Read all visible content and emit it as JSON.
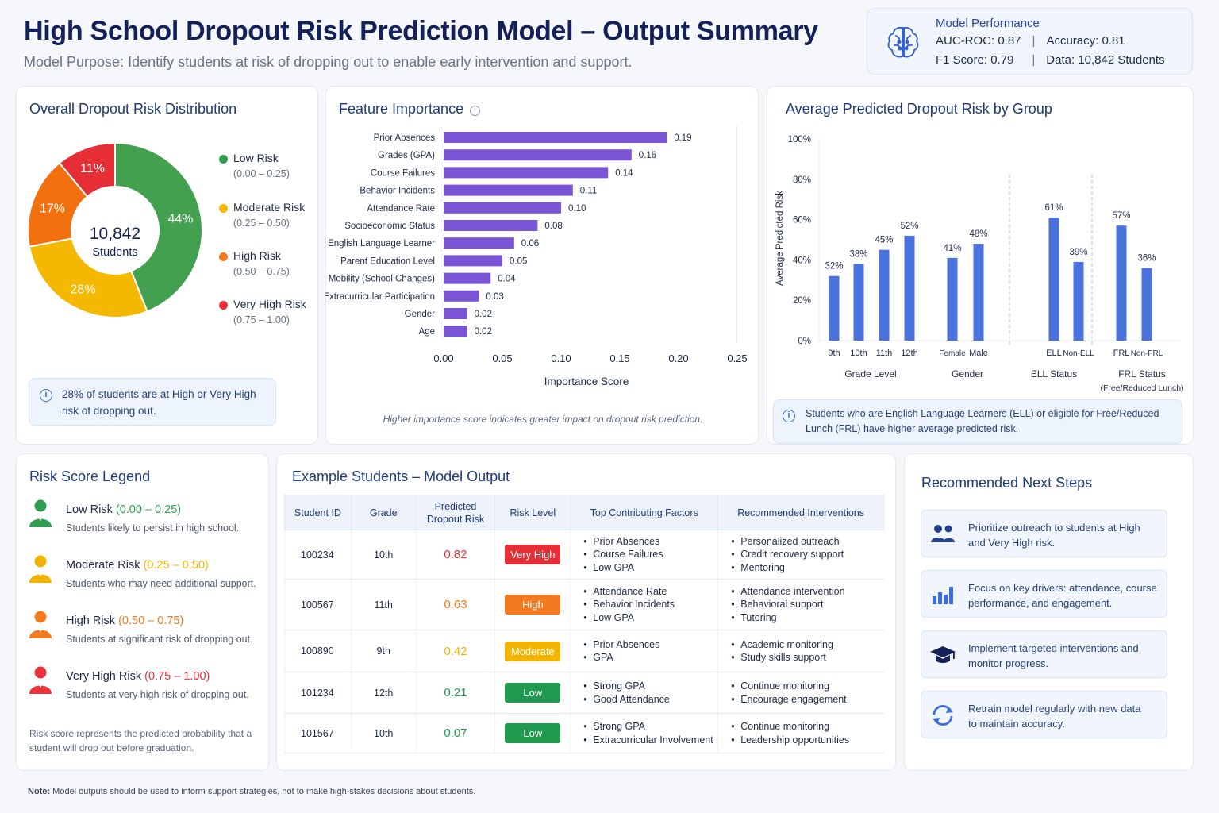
{
  "header": {
    "title": "High School Dropout Risk Prediction Model – Output Summary",
    "purpose": "Model Purpose: Identify students at risk of dropping out to enable early intervention and support."
  },
  "performance": {
    "title": "Model Performance",
    "auc": "AUC-ROC: 0.87",
    "accuracy": "Accuracy: 0.81",
    "f1": "F1 Score: 0.79",
    "data": "Data: 10,842 Students",
    "icon": "brain-icon"
  },
  "distribution": {
    "title": "Overall Dropout Risk Distribution",
    "center_value": "10,842",
    "center_label": "Students",
    "legend": [
      {
        "name": "Low Risk",
        "range": "(0.00 – 0.25)",
        "color": "#2e9e4f"
      },
      {
        "name": "Moderate Risk",
        "range": "(0.25 – 0.50)",
        "color": "#f5b800"
      },
      {
        "name": "High Risk",
        "range": "(0.50 – 0.75)",
        "color": "#f37a1f"
      },
      {
        "name": "Very High Risk",
        "range": "(0.75 – 1.00)",
        "color": "#e8333a"
      }
    ],
    "note": "28% of students are at High or Very High risk of dropping out."
  },
  "feature_importance": {
    "title": "Feature Importance",
    "note": "Higher importance score indicates greater impact on dropout risk prediction."
  },
  "group_risk": {
    "title": "Average Predicted Dropout Risk by Group",
    "note": "Students who are English Language Learners (ELL) or eligible for Free/Reduced Lunch (FRL) have higher average predicted risk.",
    "groups": [
      {
        "label": "Grade Level",
        "sublabel": ""
      },
      {
        "label": "Gender",
        "sublabel": ""
      },
      {
        "label": "ELL Status",
        "sublabel": ""
      },
      {
        "label": "FRL Status",
        "sublabel": "(Free/Reduced Lunch)"
      }
    ]
  },
  "chart_data": [
    {
      "type": "pie",
      "title": "Overall Dropout Risk Distribution",
      "categories": [
        "Low Risk",
        "Moderate Risk",
        "High Risk",
        "Very High Risk"
      ],
      "values": [
        44,
        28,
        17,
        11
      ],
      "labels": [
        "44%",
        "28%",
        "17%",
        "11%"
      ],
      "colors": [
        "#43a04e",
        "#f5b800",
        "#f3700f",
        "#e52e35"
      ]
    },
    {
      "type": "bar",
      "orientation": "horizontal",
      "title": "Feature Importance",
      "xlabel": "Importance Score",
      "categories": [
        "Prior Absences",
        "Grades (GPA)",
        "Course Failures",
        "Behavior Incidents",
        "Attendance Rate",
        "Socioeconomic Status",
        "English Language Learner",
        "Parent Education Level",
        "Mobility (School Changes)",
        "Extracurricular Participation",
        "Gender",
        "Age"
      ],
      "values": [
        0.19,
        0.16,
        0.14,
        0.11,
        0.1,
        0.08,
        0.06,
        0.05,
        0.04,
        0.03,
        0.02,
        0.02
      ],
      "labels": [
        "0.19",
        "0.16",
        "0.14",
        "0.11",
        "0.10",
        "0.08",
        "0.06",
        "0.05",
        "0.04",
        "0.03",
        "0.02",
        "0.02"
      ],
      "xlim": [
        0,
        0.25
      ],
      "xticks": [
        "0.00",
        "0.05",
        "0.10",
        "0.15",
        "0.20",
        "0.25"
      ],
      "color": "#7a55d6"
    },
    {
      "type": "bar",
      "title": "Average Predicted Dropout Risk by Group",
      "ylabel": "Average Predicted Risk",
      "categories": [
        "9th",
        "10th",
        "11th",
        "12th",
        "Female",
        "Male",
        "ELL",
        "Non-ELL",
        "FRL",
        "Non-FRL"
      ],
      "group_index": [
        0,
        0,
        0,
        0,
        1,
        1,
        2,
        2,
        3,
        3
      ],
      "values": [
        32,
        38,
        45,
        52,
        41,
        48,
        61,
        39,
        57,
        36
      ],
      "labels": [
        "32%",
        "38%",
        "45%",
        "52%",
        "41%",
        "48%",
        "61%",
        "39%",
        "57%",
        "36%"
      ],
      "ylim": [
        0,
        100
      ],
      "yticks": [
        "0%",
        "20%",
        "40%",
        "60%",
        "80%",
        "100%"
      ],
      "color": "#4a72dd"
    }
  ],
  "legend_card": {
    "title": "Risk Score Legend",
    "items": [
      {
        "name": "Low Risk",
        "range": "(0.00 – 0.25)",
        "desc": "Students likely to persist in high school.",
        "color": "#2e9e4f",
        "icon": "student-green-icon"
      },
      {
        "name": "Moderate Risk",
        "range": "(0.25 – 0.50)",
        "desc": "Students who may need additional support.",
        "color": "#f0b400",
        "icon": "student-yellow-icon"
      },
      {
        "name": "High Risk",
        "range": "(0.50 – 0.75)",
        "desc": "Students at significant risk of dropping out.",
        "color": "#f37a1f",
        "icon": "student-orange-icon"
      },
      {
        "name": "Very High Risk",
        "range": "(0.75 – 1.00)",
        "desc": "Students at very high risk of dropping out.",
        "color": "#e8333a",
        "icon": "student-red-icon"
      }
    ],
    "footnote": "Risk score represents the predicted probability that a student will drop out before graduation."
  },
  "students": {
    "title": "Example Students – Model Output",
    "headers": [
      "Student ID",
      "Grade",
      "Predicted Dropout Risk",
      "Risk Level",
      "Top Contributing Factors",
      "Recommended Interventions"
    ],
    "rows": [
      {
        "id": "100234",
        "grade": "10th",
        "risk": "0.82",
        "level": "Very High",
        "color": "#e52e35",
        "factors": [
          "Prior Absences",
          "Course Failures",
          "Low GPA"
        ],
        "interventions": [
          "Personalized outreach",
          "Credit recovery support",
          "Mentoring"
        ]
      },
      {
        "id": "100567",
        "grade": "11th",
        "risk": "0.63",
        "level": "High",
        "color": "#f37a1f",
        "factors": [
          "Attendance Rate",
          "Behavior Incidents",
          "Low GPA"
        ],
        "interventions": [
          "Attendance intervention",
          "Behavioral support",
          "Tutoring"
        ]
      },
      {
        "id": "100890",
        "grade": "9th",
        "risk": "0.42",
        "level": "Moderate",
        "color": "#f2b400",
        "factors": [
          "Prior Absences",
          "GPA"
        ],
        "interventions": [
          "Academic monitoring",
          "Study skills support"
        ]
      },
      {
        "id": "101234",
        "grade": "12th",
        "risk": "0.21",
        "level": "Low",
        "color": "#1f9a4f",
        "factors": [
          "Strong GPA",
          "Good Attendance"
        ],
        "interventions": [
          "Continue monitoring",
          "Encourage engagement"
        ]
      },
      {
        "id": "101567",
        "grade": "10th",
        "risk": "0.07",
        "level": "Low",
        "color": "#1f9a4f",
        "factors": [
          "Strong GPA",
          "Extracurricular Involvement"
        ],
        "interventions": [
          "Continue monitoring",
          "Leadership opportunities"
        ]
      }
    ]
  },
  "next_steps": {
    "title": "Recommended Next Steps",
    "items": [
      {
        "text": "Prioritize outreach to students at High and Very High risk.",
        "icon": "users-icon"
      },
      {
        "text": "Focus on key drivers: attendance, course performance, and engagement.",
        "icon": "bar-chart-icon"
      },
      {
        "text": "Implement targeted interventions and monitor progress.",
        "icon": "graduation-cap-icon"
      },
      {
        "text": "Retrain model regularly with new data to maintain accuracy.",
        "icon": "refresh-icon"
      }
    ]
  },
  "footer": {
    "label": "Note:",
    "text": " Model outputs should be used to inform support strategies, not to make high-stakes decisions about students."
  }
}
